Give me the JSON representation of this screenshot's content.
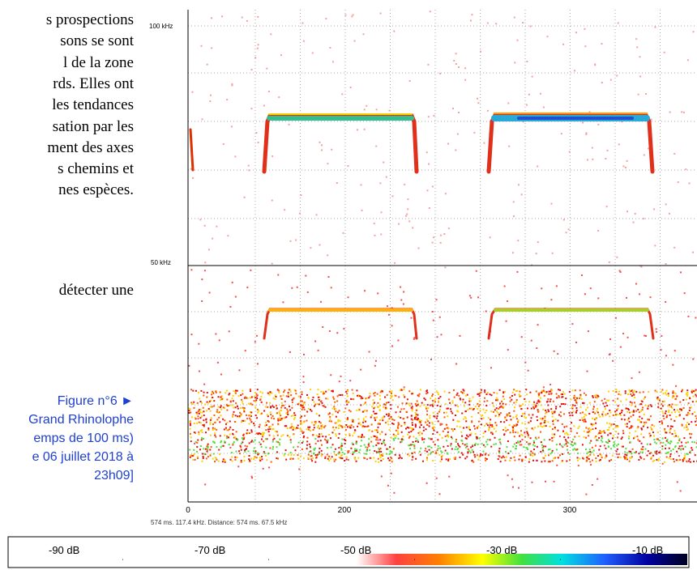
{
  "body_text": {
    "lines": [
      "s prospections",
      "sons se sont",
      "l de la zone",
      "rds. Elles ont",
      "les tendances",
      "sation par les",
      "ment des axes",
      "s chemins et",
      "nes espèces."
    ],
    "after": "détecter une"
  },
  "caption": {
    "lines": [
      "Figure n°6 ►",
      "Grand Rhinolophe",
      "emps de 100 ms)",
      "e 06 juillet 2018 à",
      "23h09]"
    ]
  },
  "spectrogram": {
    "freq_labels": [
      "100 kHz",
      "50 kHz"
    ],
    "time_labels": [
      "0",
      "200",
      "300"
    ],
    "status": "574 ms. 117.4 kHz. Distance: 574 ms. 67.5 kHz"
  },
  "color_scale": {
    "labels": [
      "-90 dB",
      "-70 dB",
      "-50 dB",
      "-30 dB",
      "-10 dB"
    ]
  }
}
